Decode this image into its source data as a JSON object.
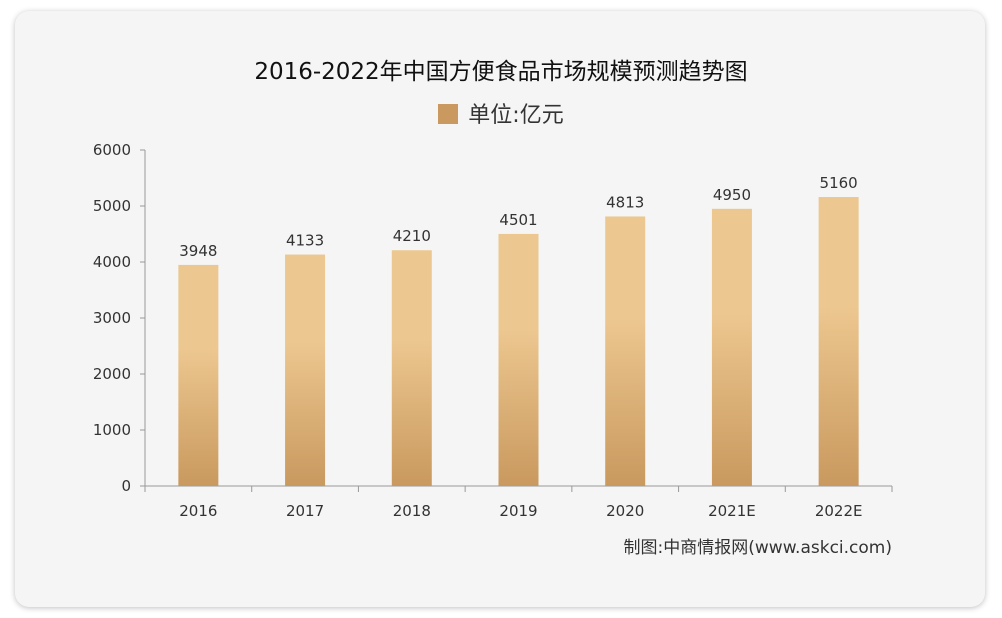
{
  "chart_data": {
    "type": "bar",
    "title": "2016-2022年中国方便食品市场规模预测趋势图",
    "categories": [
      "2016",
      "2017",
      "2018",
      "2019",
      "2020",
      "2021E",
      "2022E"
    ],
    "series": [
      {
        "name": "单位:亿元",
        "values": [
          3948,
          4133,
          4210,
          4501,
          4813,
          4950,
          5160
        ]
      }
    ],
    "data_labels": [
      "3948",
      "4133",
      "4210",
      "4501",
      "4813",
      "4950",
      "5160"
    ],
    "yticks": [
      "0",
      "1000",
      "2000",
      "3000",
      "4000",
      "5000",
      "6000"
    ],
    "ylim": [
      0,
      6000
    ],
    "xlabel": "",
    "ylabel": "",
    "grid": false,
    "legend_position": "top-center",
    "bar_color_top": "#ecc78f",
    "bar_color_bottom": "#c9995f",
    "source": "制图:中商情报网(www.askci.com)"
  }
}
